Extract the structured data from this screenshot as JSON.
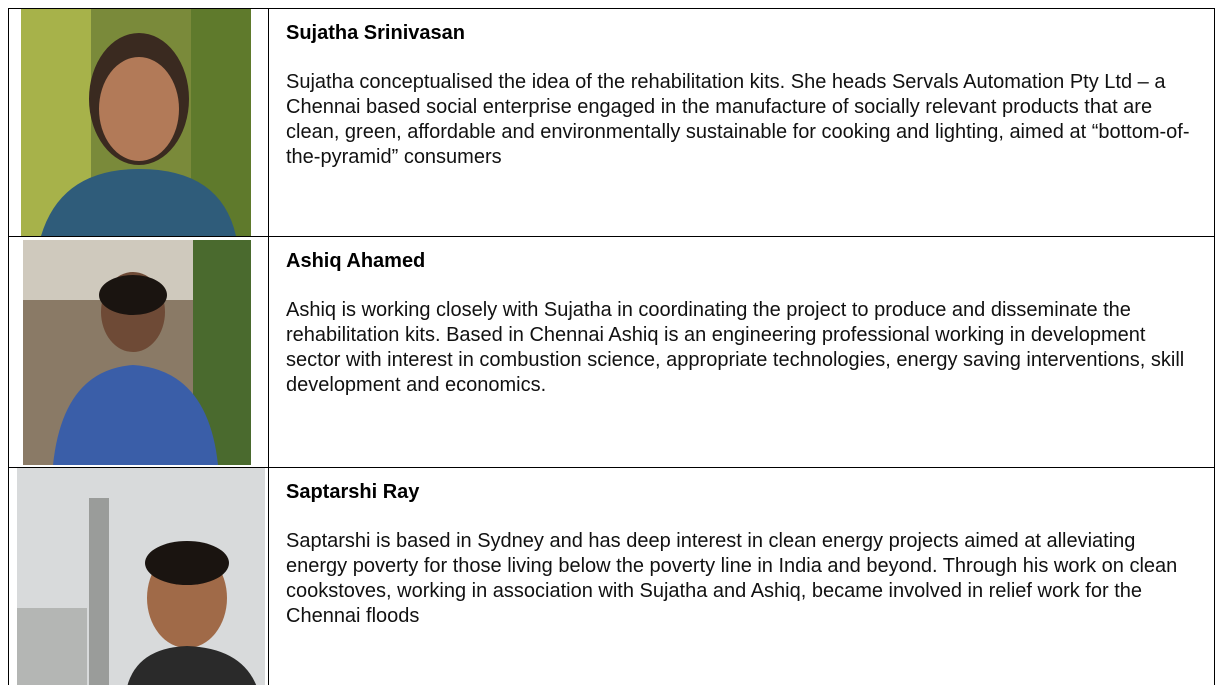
{
  "people": [
    {
      "name": "Sujatha Srinivasan",
      "bio": "Sujatha conceptualised the idea of the rehabilitation kits. She heads Servals Automation Pty Ltd – a Chennai based social enterprise engaged in the manufacture of socially relevant products that are clean, green, affordable and environmentally sustainable for cooking and lighting, aimed at “bottom-of-the-pyramid” consumers"
    },
    {
      "name": "Ashiq Ahamed",
      "bio": "Ashiq is working closely with Sujatha in coordinating the project to produce and disseminate the rehabilitation kits. Based in Chennai Ashiq is an engineering professional working in development sector with interest in combustion science, appropriate technologies, energy saving interventions, skill development and economics."
    },
    {
      "name": "Saptarshi Ray",
      "bio": "Saptarshi is based in Sydney and has deep interest in clean energy projects aimed at alleviating energy poverty for those living below the poverty line in India and beyond. Through his work on clean cookstoves, working in association with Sujatha and Ashiq, became involved in relief work for the Chennai floods"
    }
  ]
}
